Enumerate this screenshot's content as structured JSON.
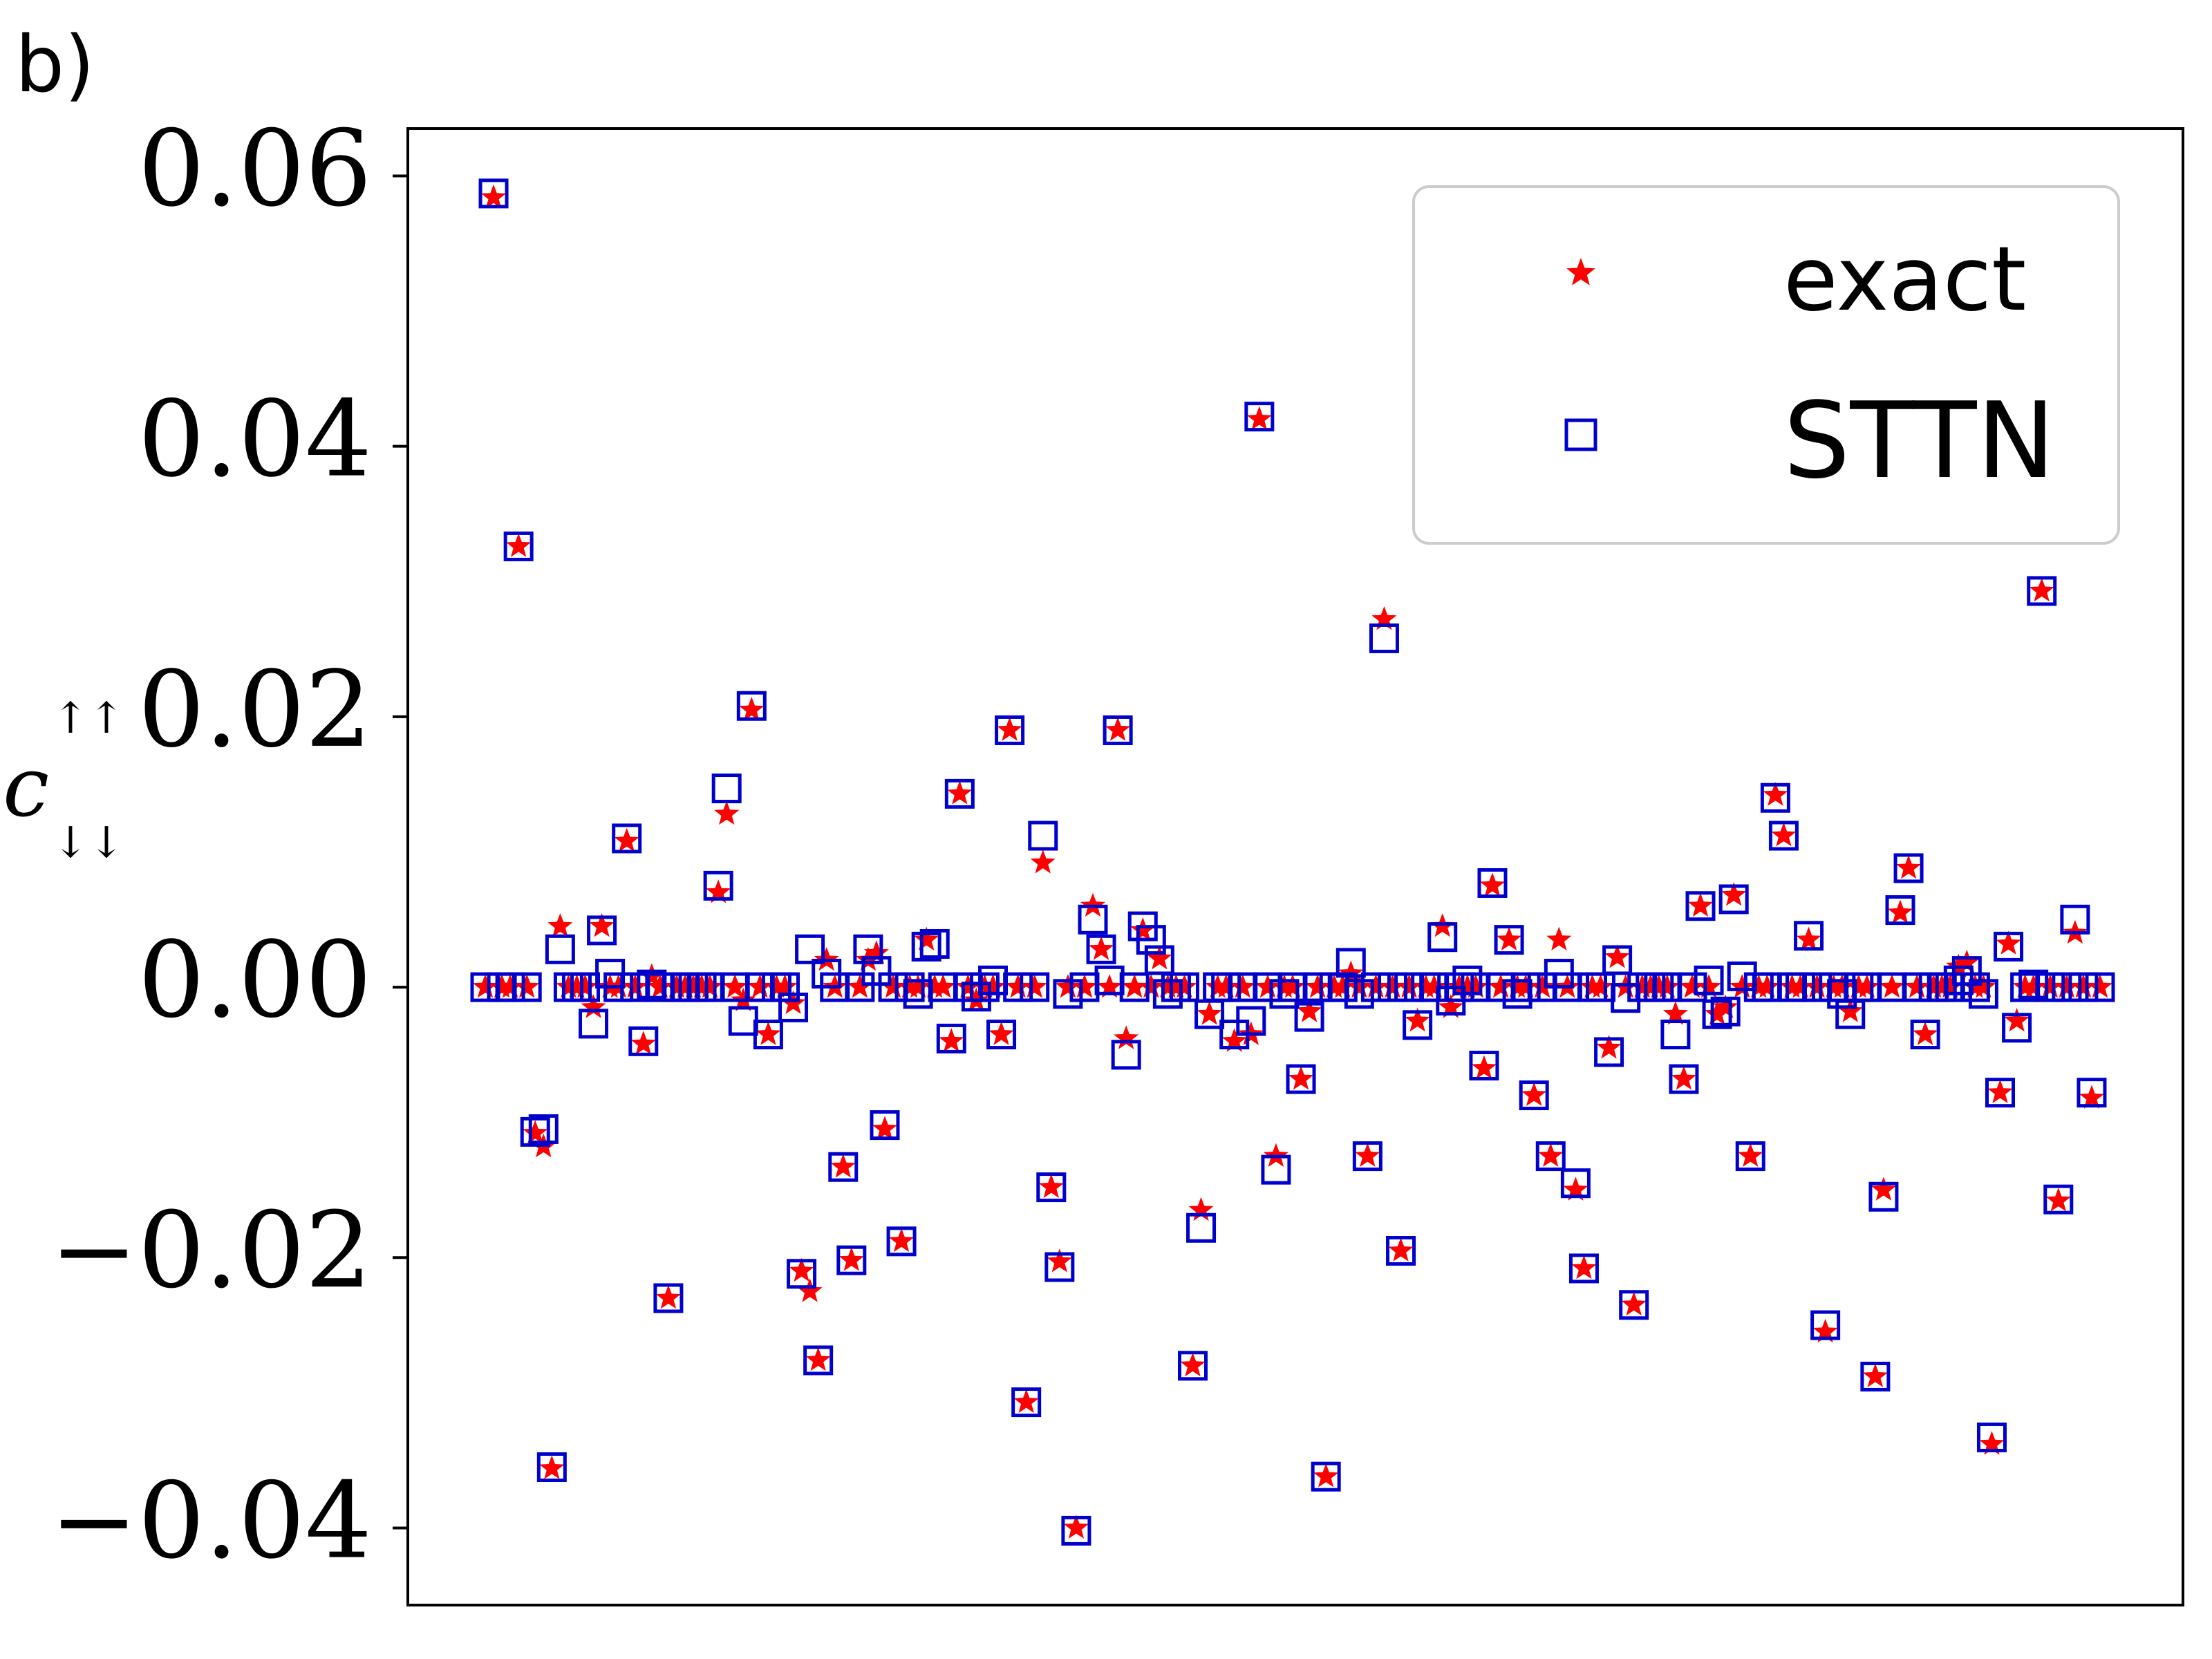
{
  "panel_label": "b)",
  "chart_data": {
    "type": "scatter",
    "title": "",
    "xlabel": "",
    "ylabel_base": "c",
    "ylabel_sup": "↑↑",
    "ylabel_sub": "↓↓",
    "ylim": [
      -0.0457,
      0.0635
    ],
    "y_ticks": [
      0.06,
      0.04,
      0.02,
      0.0,
      -0.02,
      -0.04
    ],
    "y_tick_labels": [
      "0.06",
      "0.04",
      "0.02",
      "0.00",
      "−0.02",
      "−0.04"
    ],
    "x_ticks_shown": false,
    "grid": false,
    "legend_position": "top-right",
    "colors": {
      "exact": "#ff0000",
      "sttn": "#0000cc",
      "frame": "#000000",
      "legend_border": "#cccccc"
    },
    "series": [
      {
        "name": "exact",
        "marker": "star",
        "values": [
          0,
          0.0584,
          0,
          0,
          0.0326,
          0,
          -0.0108,
          -0.0118,
          -0.0356,
          0.0045,
          0,
          0,
          0,
          -0.0015,
          0.0045,
          0,
          0,
          0.0108,
          0,
          -0.0042,
          0.0008,
          0,
          -0.023,
          0,
          0,
          0,
          0,
          0,
          0.007,
          0.0128,
          0,
          -0.001,
          0.0205,
          0,
          -0.0035,
          0,
          0,
          -0.0012,
          -0.021,
          -0.0225,
          -0.0276,
          0.002,
          0,
          -0.0133,
          -0.0202,
          0,
          0.002,
          0.0025,
          -0.0105,
          0,
          -0.0188,
          0,
          0,
          0.0035,
          0,
          0,
          -0.004,
          0.0143,
          0,
          -0.001,
          0,
          0,
          -0.0035,
          0.019,
          0,
          -0.0307,
          0,
          0.0092,
          -0.0148,
          -0.0203,
          0,
          -0.04,
          0,
          0.006,
          0.0028,
          0,
          0.019,
          -0.0038,
          0,
          0.0042,
          0,
          0.0021,
          0,
          0,
          0,
          -0.028,
          -0.0165,
          -0.002,
          0,
          0,
          -0.004,
          0,
          -0.0035,
          0.042,
          0,
          -0.0125,
          0,
          0,
          -0.0068,
          -0.0018,
          0,
          -0.0362,
          0,
          0,
          0.001,
          0,
          -0.0125,
          0,
          0.0272,
          0,
          -0.0195,
          0,
          -0.0025,
          0,
          0,
          0.0045,
          -0.0015,
          0,
          0,
          0,
          -0.006,
          0.0075,
          0,
          0.0035,
          0,
          0,
          -0.008,
          0,
          -0.0125,
          0.0035,
          0,
          -0.015,
          -0.0208,
          0,
          0,
          -0.0045,
          0.0022,
          0,
          -0.0235,
          0,
          0,
          0,
          0,
          -0.002,
          -0.0068,
          0,
          0.006,
          0,
          -0.002,
          -0.0015,
          0.0068,
          0,
          -0.0125,
          0,
          0,
          0.0142,
          0.0112,
          0,
          0,
          0.0035,
          0,
          -0.0255,
          0,
          0,
          -0.0018,
          0,
          0,
          -0.0288,
          -0.015,
          0,
          0.0055,
          0.0088,
          0,
          -0.0035,
          0,
          0,
          0,
          0.0015,
          0.0018,
          0,
          0,
          -0.0338,
          -0.0078,
          0.0032,
          -0.0025,
          0,
          0,
          0.0293,
          0,
          -0.0158,
          0,
          0.004,
          0,
          -0.0082,
          0
        ]
      },
      {
        "name": "STTN",
        "marker": "square",
        "values": [
          0,
          0.0587,
          0,
          0,
          0.0326,
          0,
          -0.0107,
          -0.0105,
          -0.0355,
          0.0028,
          0,
          0,
          0,
          -0.0027,
          0.0042,
          0.001,
          0,
          0.011,
          0,
          -0.004,
          0.0002,
          0,
          -0.023,
          0,
          0,
          0,
          0,
          0,
          0.0075,
          0.0147,
          0,
          -0.0025,
          0.0208,
          0,
          -0.0035,
          0,
          0,
          -0.0015,
          -0.0212,
          0.0028,
          -0.0276,
          0.001,
          0,
          -0.0133,
          -0.0202,
          0,
          0.0028,
          0.0012,
          -0.0102,
          0,
          -0.0188,
          0,
          -0.0005,
          0.003,
          0.0032,
          0,
          -0.0038,
          0.0143,
          0,
          -0.0007,
          0,
          0.0005,
          -0.0035,
          0.019,
          0,
          -0.0307,
          0,
          0.0112,
          -0.0148,
          -0.0207,
          -0.0005,
          -0.0402,
          0,
          0.005,
          0.0028,
          0.0005,
          0.019,
          -0.005,
          0,
          0.0045,
          0.0035,
          0.002,
          -0.0005,
          0,
          0,
          -0.028,
          -0.0178,
          -0.002,
          0,
          0,
          -0.0035,
          0,
          -0.0025,
          0.0422,
          0,
          -0.0135,
          -0.0005,
          0,
          -0.0068,
          -0.0022,
          0,
          -0.0362,
          0,
          0,
          0.0018,
          -0.0005,
          -0.0125,
          0,
          0.0258,
          0,
          -0.0195,
          0,
          -0.0028,
          0,
          0,
          0.0037,
          -0.001,
          0,
          0.0005,
          0,
          -0.0058,
          0.0077,
          0,
          0.0035,
          -0.0005,
          0,
          -0.008,
          0,
          -0.0125,
          0.001,
          0,
          -0.0145,
          -0.0208,
          0,
          0,
          -0.0048,
          0.002,
          -0.0008,
          -0.0235,
          0,
          0,
          0,
          0,
          -0.0035,
          -0.0068,
          0,
          0.006,
          0.0005,
          -0.002,
          -0.0018,
          0.0065,
          0.0008,
          -0.0125,
          0,
          0,
          0.014,
          0.0112,
          0,
          0,
          0.0038,
          0,
          -0.025,
          0,
          -0.0005,
          -0.002,
          0,
          0,
          -0.0288,
          -0.0155,
          0,
          0.0057,
          0.0088,
          0,
          -0.0035,
          0,
          0,
          0,
          0.0005,
          0.0012,
          0,
          -0.0005,
          -0.0333,
          -0.0078,
          0.003,
          -0.003,
          0,
          0.0002,
          0.0293,
          0,
          -0.0157,
          0,
          0.005,
          0,
          -0.0078,
          0
        ]
      }
    ]
  }
}
